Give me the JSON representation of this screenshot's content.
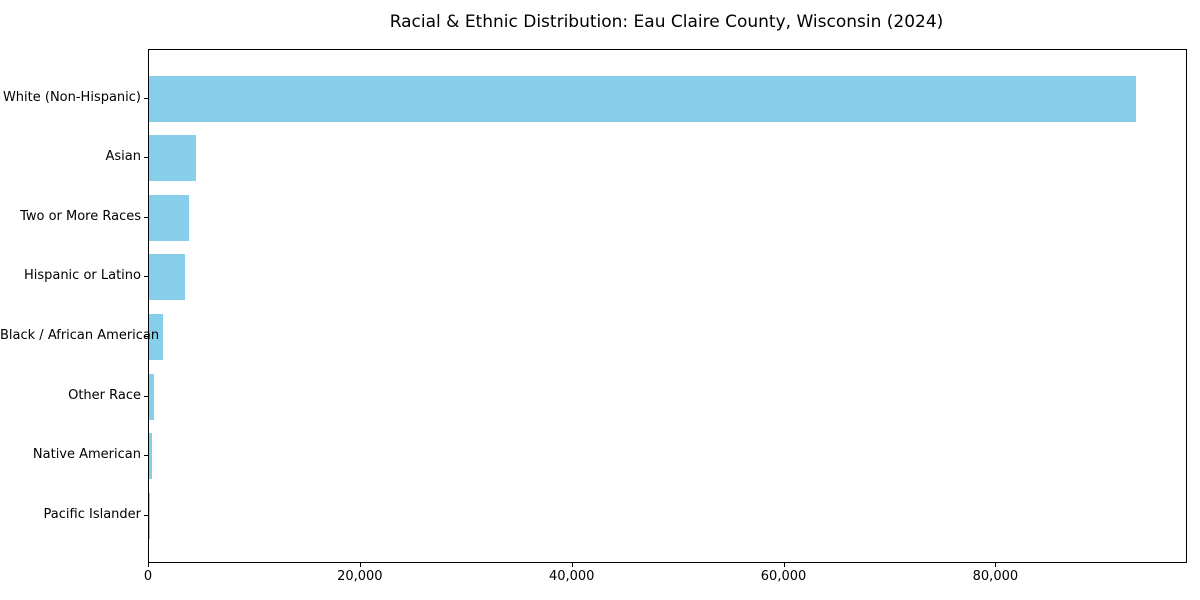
{
  "chart_data": {
    "type": "bar",
    "orientation": "horizontal",
    "title": "Racial & Ethnic Distribution: Eau Claire County, Wisconsin (2024)",
    "categories": [
      "White (Non-Hispanic)",
      "Asian",
      "Two or More Races",
      "Hispanic or Latino",
      "Black / African American",
      "Other Race",
      "Native American",
      "Pacific Islander"
    ],
    "values": [
      93200,
      4430,
      3750,
      3420,
      1290,
      470,
      280,
      40
    ],
    "bar_color": "#87ceeb",
    "xlabel": "",
    "ylabel": "",
    "xlim": [
      0,
      97900
    ],
    "xticks": [
      {
        "value": 0,
        "label": "0"
      },
      {
        "value": 20000,
        "label": "20,000"
      },
      {
        "value": 40000,
        "label": "40,000"
      },
      {
        "value": 60000,
        "label": "60,000"
      },
      {
        "value": 80000,
        "label": "80,000"
      }
    ],
    "grid": false,
    "legend": null
  }
}
